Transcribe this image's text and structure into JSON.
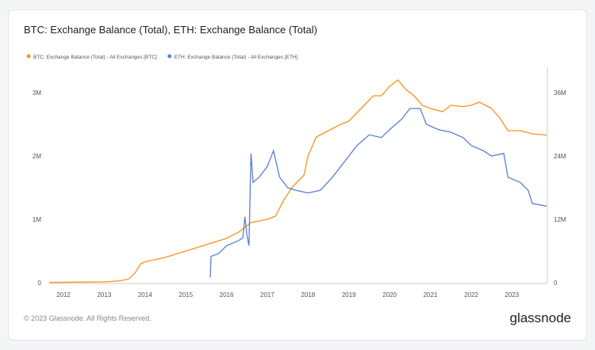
{
  "chart_data": {
    "type": "line",
    "title": "BTC: Exchange Balance (Total), ETH: Exchange Balance (Total)",
    "footer": "© 2023 Glassnode. All Rights Reserved.",
    "brand": "glassnode",
    "legend": "top-left",
    "grid": false,
    "xlim": [
      2011.65,
      2023.87
    ],
    "xticks": [
      2012,
      2013,
      2014,
      2015,
      2016,
      2017,
      2018,
      2019,
      2020,
      2021,
      2022,
      2023
    ],
    "ylim": [
      0,
      3400000
    ],
    "yticks": [
      0,
      {
        "value": 1000000,
        "label": "1M"
      },
      {
        "value": 2000000,
        "label": "2M"
      },
      {
        "value": 3000000,
        "label": "3M"
      }
    ],
    "y2lim": [
      0,
      40800000
    ],
    "y2ticks": [
      0,
      {
        "value": 12000000,
        "label": "12M"
      },
      {
        "value": 24000000,
        "label": "24M"
      },
      {
        "value": 36000000,
        "label": "36M"
      }
    ],
    "series": [
      {
        "name": "BTC: Exchange Balance (Total) - All Exchanges [BTC]",
        "color": "#f7931a",
        "x": [
          2011.65,
          2012.5,
          2013.0,
          2013.4,
          2013.6,
          2013.75,
          2013.9,
          2014.0,
          2014.5,
          2015.0,
          2015.5,
          2016.0,
          2016.3,
          2016.6,
          2017.0,
          2017.2,
          2017.4,
          2017.6,
          2017.9,
          2018.0,
          2018.2,
          2018.5,
          2018.8,
          2019.0,
          2019.3,
          2019.6,
          2019.8,
          2020.0,
          2020.2,
          2020.4,
          2020.6,
          2020.8,
          2021.0,
          2021.3,
          2021.5,
          2021.8,
          2022.0,
          2022.2,
          2022.5,
          2022.7,
          2022.9,
          2023.2,
          2023.5,
          2023.85
        ],
        "values": [
          5000,
          10000,
          12000,
          30000,
          60000,
          150000,
          300000,
          330000,
          400000,
          500000,
          600000,
          700000,
          800000,
          950000,
          1000000,
          1050000,
          1300000,
          1500000,
          1700000,
          2000000,
          2300000,
          2400000,
          2500000,
          2550000,
          2750000,
          2950000,
          2950000,
          3100000,
          3200000,
          3050000,
          2950000,
          2800000,
          2750000,
          2700000,
          2800000,
          2780000,
          2800000,
          2850000,
          2750000,
          2600000,
          2400000,
          2400000,
          2350000,
          2330000
        ]
      },
      {
        "name": "ETH: Exchange Balance (Total) - All Exchanges [ETH]",
        "color": "#5b7fd6",
        "axis": "y2",
        "x": [
          2015.6,
          2015.62,
          2015.8,
          2016.0,
          2016.3,
          2016.4,
          2016.45,
          2016.5,
          2016.55,
          2016.6,
          2016.65,
          2016.8,
          2017.0,
          2017.15,
          2017.3,
          2017.5,
          2017.7,
          2018.0,
          2018.3,
          2018.6,
          2018.9,
          2019.2,
          2019.5,
          2019.8,
          2020.0,
          2020.3,
          2020.5,
          2020.75,
          2020.9,
          2021.2,
          2021.5,
          2021.8,
          2022.0,
          2022.3,
          2022.5,
          2022.8,
          2022.9,
          2023.2,
          2023.4,
          2023.5,
          2023.85
        ],
        "values": [
          1000000,
          5000000,
          5500000,
          7000000,
          8000000,
          8500000,
          12500000,
          9000000,
          7000000,
          24500000,
          19000000,
          20000000,
          22000000,
          25000000,
          20000000,
          18000000,
          17500000,
          17000000,
          17500000,
          20000000,
          23000000,
          26000000,
          28000000,
          27500000,
          29000000,
          31000000,
          33000000,
          33000000,
          30000000,
          29000000,
          28500000,
          27500000,
          26000000,
          25000000,
          24000000,
          24500000,
          20000000,
          19000000,
          17500000,
          15000000,
          14500000
        ]
      }
    ]
  }
}
